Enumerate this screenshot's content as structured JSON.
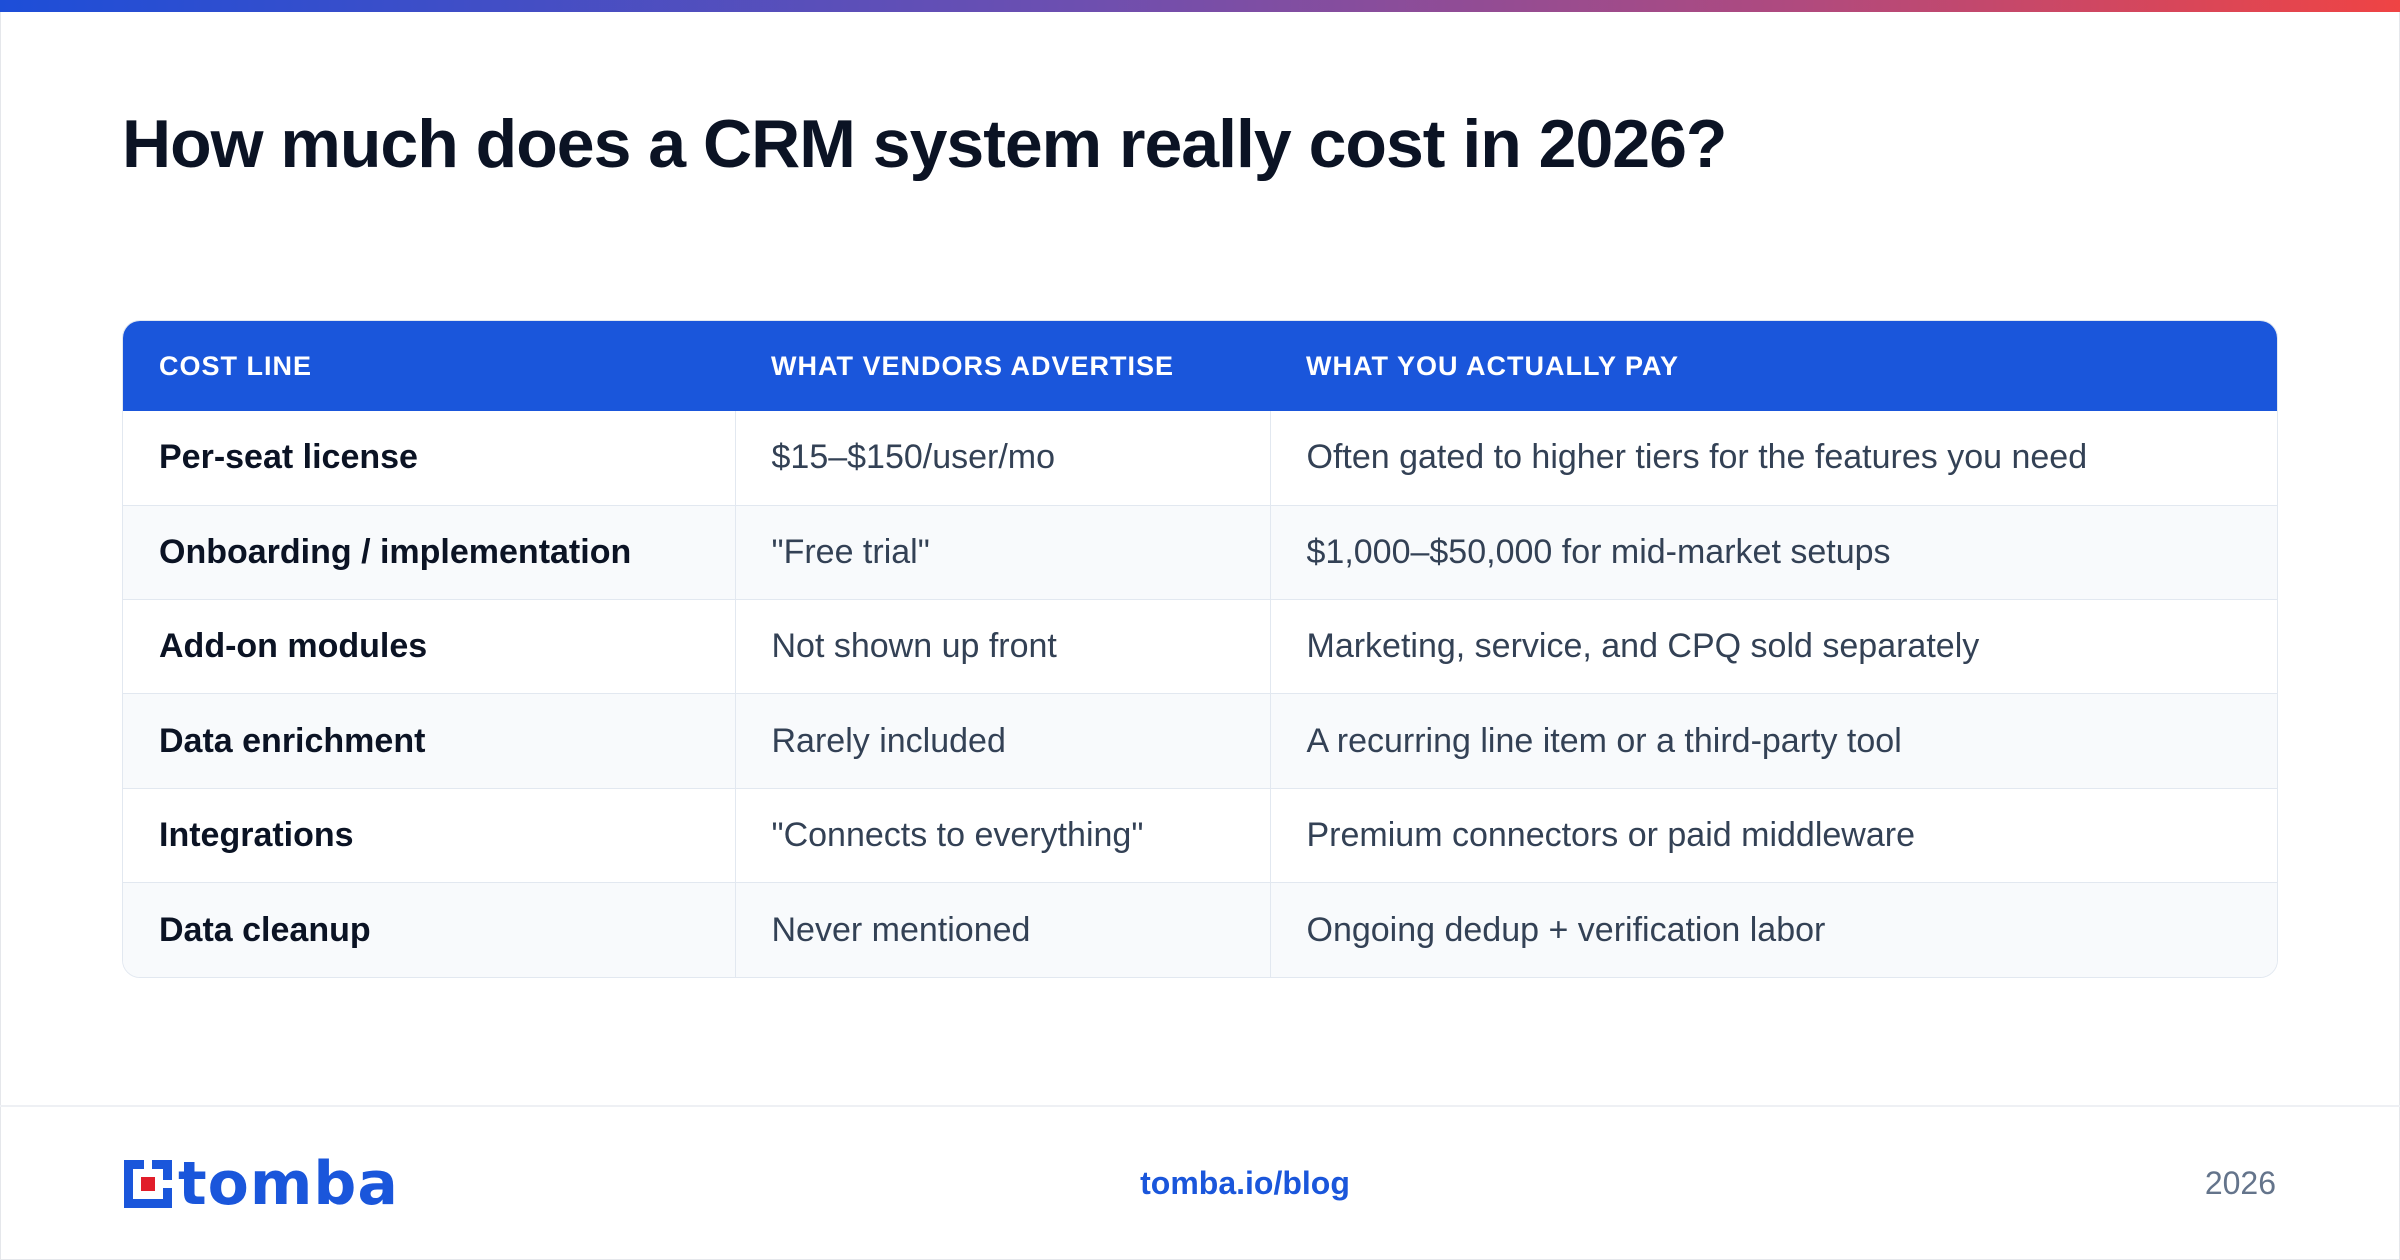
{
  "title": "How much does a CRM system really cost in 2026?",
  "table": {
    "headers": [
      "COST LINE",
      "WHAT VENDORS ADVERTISE",
      "WHAT YOU ACTUALLY PAY"
    ],
    "rows": [
      [
        "Per-seat license",
        "$15–$150/user/mo",
        "Often gated to higher tiers for the features you need"
      ],
      [
        "Onboarding / implementation",
        "\"Free trial\"",
        "$1,000–$50,000 for mid-market setups"
      ],
      [
        "Add-on modules",
        "Not shown up front",
        "Marketing, service, and CPQ sold separately"
      ],
      [
        "Data enrichment",
        "Rarely included",
        "A recurring line item or a third-party tool"
      ],
      [
        "Integrations",
        "\"Connects to everything\"",
        "Premium connectors or paid middleware"
      ],
      [
        "Data cleanup",
        "Never mentioned",
        "Ongoing dedup + verification labor"
      ]
    ]
  },
  "footer": {
    "brand": "tomba",
    "link": "tomba.io/blog",
    "year": "2026"
  },
  "colors": {
    "accent": "#1a56db",
    "brand_red": "#e11d2a",
    "heading": "#0b1324",
    "body_text": "#334155"
  },
  "icons": {
    "logo": "tomba-logo-icon"
  }
}
